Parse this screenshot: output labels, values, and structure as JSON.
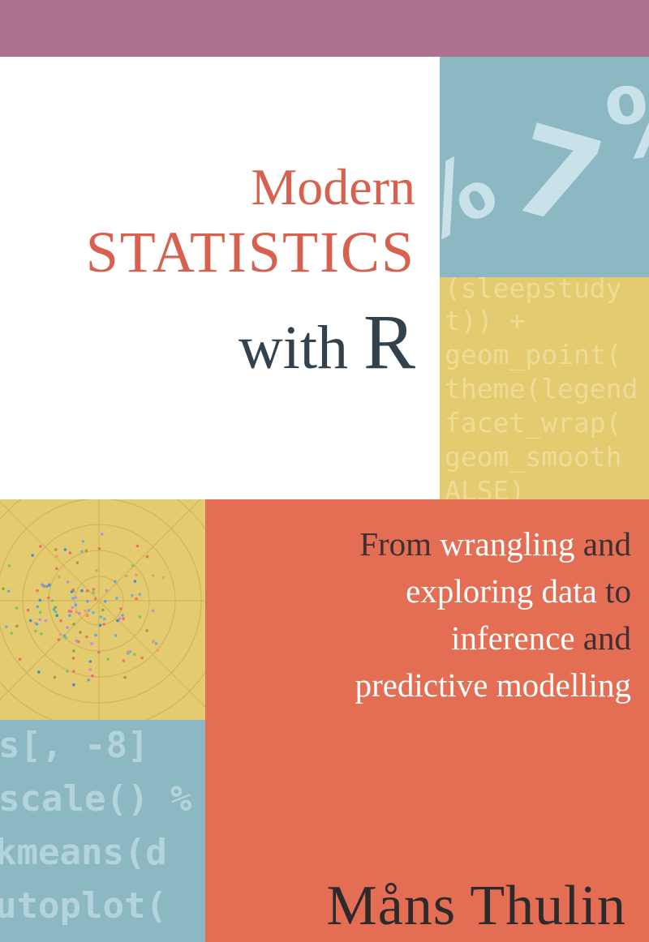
{
  "title": {
    "line1": "Modern",
    "line2": "STATISTICS",
    "line3_word": "with",
    "line3_letter": "R"
  },
  "subtitle": {
    "lines": [
      [
        {
          "t": "From ",
          "hl": false
        },
        {
          "t": "wrangling",
          "hl": true
        },
        {
          "t": " and",
          "hl": false
        }
      ],
      [
        {
          "t": "exploring data",
          "hl": true
        },
        {
          "t": " to",
          "hl": false
        }
      ],
      [
        {
          "t": "inference",
          "hl": true
        },
        {
          "t": " and",
          "hl": false
        }
      ],
      [
        {
          "t": "predictive modelling",
          "hl": true
        }
      ]
    ]
  },
  "author": "Måns Thulin",
  "decor": {
    "symbols": [
      "%",
      "7",
      "%"
    ],
    "code_yellow": [
      "(sleepstudy",
      "t)) +",
      "geom_point(",
      "theme(legend",
      "facet_wrap(",
      "geom_smooth",
      "ALSE)"
    ],
    "code_blue": [
      "s[, -8] ",
      "scale() %",
      "kmeans(d",
      "utoplot("
    ]
  },
  "colors": {
    "top_band": "#ad718f",
    "blue_block": "#8bb8c3",
    "yellow_block": "#e4cb6f",
    "coral_block": "#e36e54",
    "title_coral": "#d8604e",
    "title_dark": "#33414c"
  }
}
